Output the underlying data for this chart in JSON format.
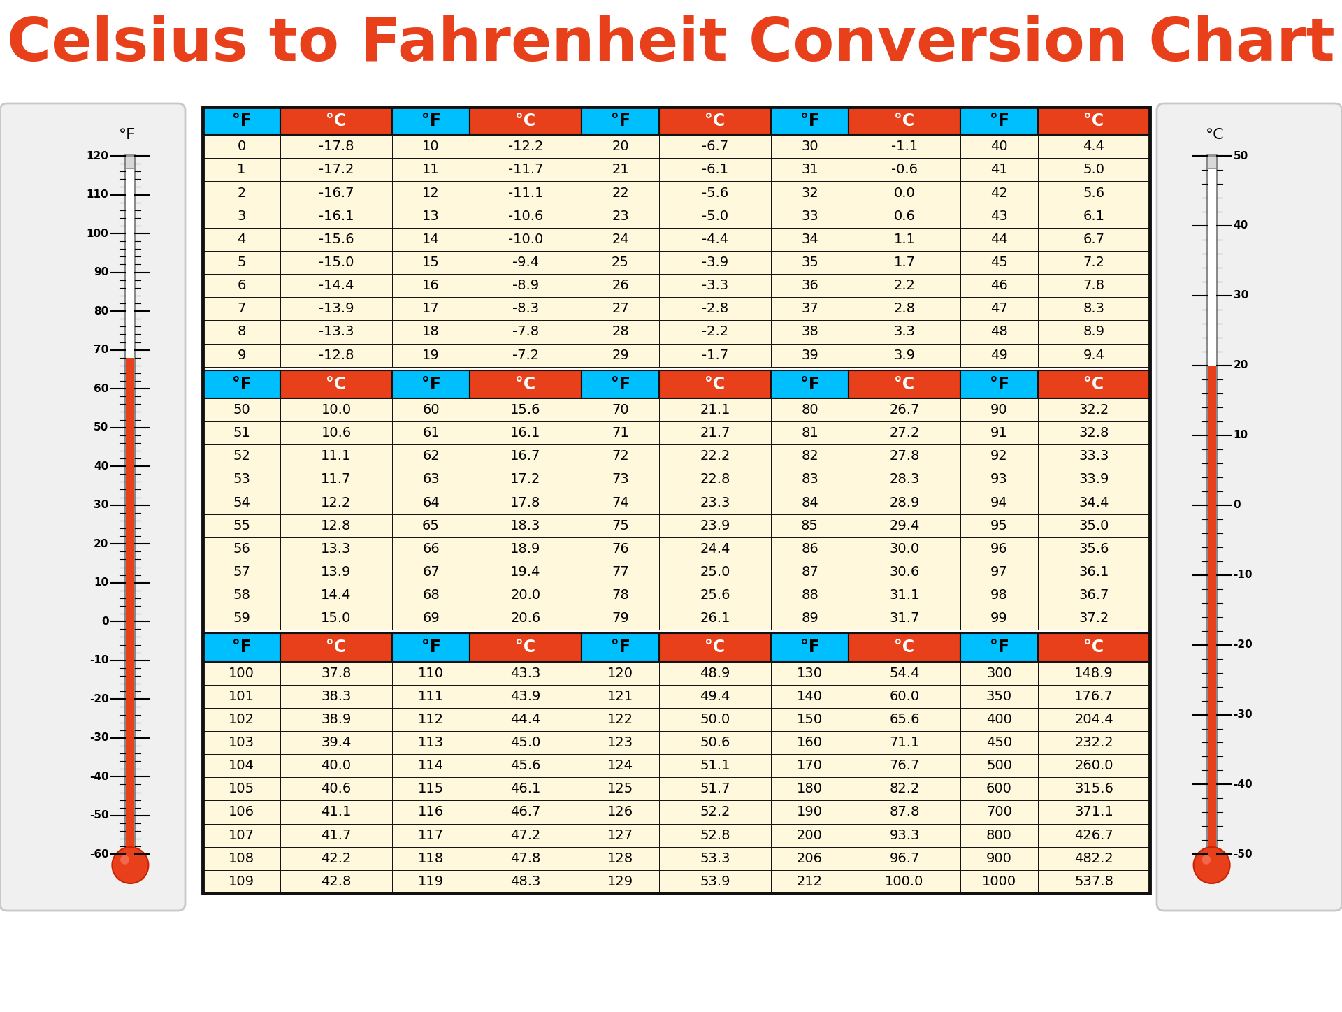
{
  "title": "Celsius to Fahrenheit Conversion Chart",
  "title_color": "#E8401A",
  "title_fontsize": 62,
  "bg_color": "#FFFFFF",
  "header_cyan": "#00BFFF",
  "header_orange": "#E8401A",
  "cell_bg": "#FFF8DC",
  "border_color": "#111111",
  "section1_header": [
    "°F",
    "°C",
    "°F",
    "°C",
    "°F",
    "°C",
    "°F",
    "°C",
    "°F",
    "°C"
  ],
  "section1_data": [
    [
      "0",
      "-17.8",
      "10",
      "-12.2",
      "20",
      "-6.7",
      "30",
      "-1.1",
      "40",
      "4.4"
    ],
    [
      "1",
      "-17.2",
      "11",
      "-11.7",
      "21",
      "-6.1",
      "31",
      "-0.6",
      "41",
      "5.0"
    ],
    [
      "2",
      "-16.7",
      "12",
      "-11.1",
      "22",
      "-5.6",
      "32",
      "0.0",
      "42",
      "5.6"
    ],
    [
      "3",
      "-16.1",
      "13",
      "-10.6",
      "23",
      "-5.0",
      "33",
      "0.6",
      "43",
      "6.1"
    ],
    [
      "4",
      "-15.6",
      "14",
      "-10.0",
      "24",
      "-4.4",
      "34",
      "1.1",
      "44",
      "6.7"
    ],
    [
      "5",
      "-15.0",
      "15",
      "-9.4",
      "25",
      "-3.9",
      "35",
      "1.7",
      "45",
      "7.2"
    ],
    [
      "6",
      "-14.4",
      "16",
      "-8.9",
      "26",
      "-3.3",
      "36",
      "2.2",
      "46",
      "7.8"
    ],
    [
      "7",
      "-13.9",
      "17",
      "-8.3",
      "27",
      "-2.8",
      "37",
      "2.8",
      "47",
      "8.3"
    ],
    [
      "8",
      "-13.3",
      "18",
      "-7.8",
      "28",
      "-2.2",
      "38",
      "3.3",
      "48",
      "8.9"
    ],
    [
      "9",
      "-12.8",
      "19",
      "-7.2",
      "29",
      "-1.7",
      "39",
      "3.9",
      "49",
      "9.4"
    ]
  ],
  "section2_header": [
    "°F",
    "°C",
    "°F",
    "°C",
    "°F",
    "°C",
    "°F",
    "°C",
    "°F",
    "°C"
  ],
  "section2_data": [
    [
      "50",
      "10.0",
      "60",
      "15.6",
      "70",
      "21.1",
      "80",
      "26.7",
      "90",
      "32.2"
    ],
    [
      "51",
      "10.6",
      "61",
      "16.1",
      "71",
      "21.7",
      "81",
      "27.2",
      "91",
      "32.8"
    ],
    [
      "52",
      "11.1",
      "62",
      "16.7",
      "72",
      "22.2",
      "82",
      "27.8",
      "92",
      "33.3"
    ],
    [
      "53",
      "11.7",
      "63",
      "17.2",
      "73",
      "22.8",
      "83",
      "28.3",
      "93",
      "33.9"
    ],
    [
      "54",
      "12.2",
      "64",
      "17.8",
      "74",
      "23.3",
      "84",
      "28.9",
      "94",
      "34.4"
    ],
    [
      "55",
      "12.8",
      "65",
      "18.3",
      "75",
      "23.9",
      "85",
      "29.4",
      "95",
      "35.0"
    ],
    [
      "56",
      "13.3",
      "66",
      "18.9",
      "76",
      "24.4",
      "86",
      "30.0",
      "96",
      "35.6"
    ],
    [
      "57",
      "13.9",
      "67",
      "19.4",
      "77",
      "25.0",
      "87",
      "30.6",
      "97",
      "36.1"
    ],
    [
      "58",
      "14.4",
      "68",
      "20.0",
      "78",
      "25.6",
      "88",
      "31.1",
      "98",
      "36.7"
    ],
    [
      "59",
      "15.0",
      "69",
      "20.6",
      "79",
      "26.1",
      "89",
      "31.7",
      "99",
      "37.2"
    ]
  ],
  "section3_header": [
    "°F",
    "°C",
    "°F",
    "°C",
    "°F",
    "°C",
    "°F",
    "°C",
    "°F",
    "°C"
  ],
  "section3_data": [
    [
      "100",
      "37.8",
      "110",
      "43.3",
      "120",
      "48.9",
      "130",
      "54.4",
      "300",
      "148.9"
    ],
    [
      "101",
      "38.3",
      "111",
      "43.9",
      "121",
      "49.4",
      "140",
      "60.0",
      "350",
      "176.7"
    ],
    [
      "102",
      "38.9",
      "112",
      "44.4",
      "122",
      "50.0",
      "150",
      "65.6",
      "400",
      "204.4"
    ],
    [
      "103",
      "39.4",
      "113",
      "45.0",
      "123",
      "50.6",
      "160",
      "71.1",
      "450",
      "232.2"
    ],
    [
      "104",
      "40.0",
      "114",
      "45.6",
      "124",
      "51.1",
      "170",
      "76.7",
      "500",
      "260.0"
    ],
    [
      "105",
      "40.6",
      "115",
      "46.1",
      "125",
      "51.7",
      "180",
      "82.2",
      "600",
      "315.6"
    ],
    [
      "106",
      "41.1",
      "116",
      "46.7",
      "126",
      "52.2",
      "190",
      "87.8",
      "700",
      "371.1"
    ],
    [
      "107",
      "41.7",
      "117",
      "47.2",
      "127",
      "52.8",
      "200",
      "93.3",
      "800",
      "426.7"
    ],
    [
      "108",
      "42.2",
      "118",
      "47.8",
      "128",
      "53.3",
      "206",
      "96.7",
      "900",
      "482.2"
    ],
    [
      "109",
      "42.8",
      "119",
      "48.3",
      "129",
      "53.9",
      "212",
      "100.0",
      "1000",
      "537.8"
    ]
  ],
  "therm_F_ticks": [
    -60,
    -50,
    -40,
    -30,
    -20,
    -10,
    0,
    10,
    20,
    30,
    40,
    50,
    60,
    70,
    80,
    90,
    100,
    110,
    120
  ],
  "therm_C_ticks": [
    -50,
    -40,
    -30,
    -20,
    -10,
    0,
    10,
    20,
    30,
    40,
    50
  ],
  "therm_F_min": -60,
  "therm_F_max": 120,
  "therm_C_min": -50,
  "therm_C_max": 50,
  "therm_mercury_F": 68,
  "therm_mercury_C": 20
}
